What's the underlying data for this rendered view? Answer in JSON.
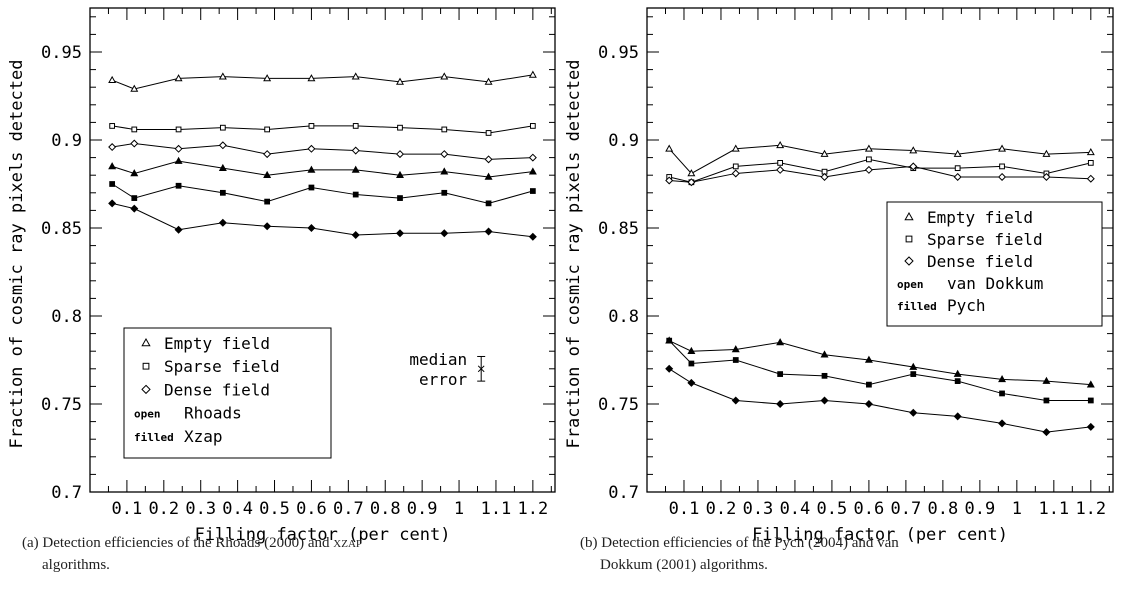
{
  "chart_data": [
    {
      "type": "line",
      "panel_id": "a",
      "xlabel": "Filling factor (per cent)",
      "ylabel": "Fraction of cosmic ray pixels detected",
      "xlim": [
        0,
        1.26
      ],
      "ylim": [
        0.7,
        0.975
      ],
      "xticks": [
        "0.1",
        "0.2",
        "0.3",
        "0.4",
        "0.5",
        "0.6",
        "0.7",
        "0.8",
        "0.9",
        "1",
        "1.1",
        "1.2"
      ],
      "yticks": [
        "0.7",
        "0.75",
        "0.8",
        "0.85",
        "0.9",
        "0.95"
      ],
      "x": [
        0.06,
        0.12,
        0.24,
        0.36,
        0.48,
        0.6,
        0.72,
        0.84,
        0.96,
        1.08,
        1.2
      ],
      "series": [
        {
          "name": "Empty field",
          "marker": "triangle",
          "filled": false,
          "values": [
            0.934,
            0.929,
            0.935,
            0.936,
            0.935,
            0.935,
            0.936,
            0.933,
            0.936,
            0.933,
            0.937
          ]
        },
        {
          "name": "Sparse field",
          "marker": "square",
          "filled": false,
          "values": [
            0.908,
            0.906,
            0.906,
            0.907,
            0.906,
            0.908,
            0.908,
            0.907,
            0.906,
            0.904,
            0.908
          ]
        },
        {
          "name": "Dense field",
          "marker": "diamond",
          "filled": false,
          "values": [
            0.896,
            0.898,
            0.895,
            0.897,
            0.892,
            0.895,
            0.894,
            0.892,
            0.892,
            0.889,
            0.89
          ]
        },
        {
          "name": "Empty field",
          "marker": "triangle",
          "filled": true,
          "values": [
            0.885,
            0.881,
            0.888,
            0.884,
            0.88,
            0.883,
            0.883,
            0.88,
            0.882,
            0.879,
            0.882
          ]
        },
        {
          "name": "Sparse field",
          "marker": "square",
          "filled": true,
          "values": [
            0.875,
            0.867,
            0.874,
            0.87,
            0.865,
            0.873,
            0.869,
            0.867,
            0.87,
            0.864,
            0.871
          ]
        },
        {
          "name": "Dense field",
          "marker": "diamond",
          "filled": true,
          "values": [
            0.864,
            0.861,
            0.849,
            0.853,
            0.851,
            0.85,
            0.846,
            0.847,
            0.847,
            0.848,
            0.845
          ]
        }
      ],
      "legend": {
        "items": [
          {
            "symbol": "triangle",
            "label": "Empty field"
          },
          {
            "symbol": "square",
            "label": "Sparse field"
          },
          {
            "symbol": "diamond",
            "label": "Dense field"
          },
          {
            "key": "open",
            "label": "Rhoads"
          },
          {
            "key": "filled",
            "label": "Xzap"
          }
        ],
        "placement": "bottom-left"
      },
      "annotation": {
        "line1": "median",
        "line2": "error",
        "x": 1.06,
        "y": 0.77,
        "error": 0.007
      },
      "caption": {
        "line1_pre": "(a) Detection efficiencies of the Rhoads (2000) and ",
        "line1_sc": "XZAP",
        "line2": "algorithms."
      }
    },
    {
      "type": "line",
      "panel_id": "b",
      "xlabel": "Filling factor (per cent)",
      "ylabel": "Fraction of cosmic ray pixels detected",
      "xlim": [
        0,
        1.26
      ],
      "ylim": [
        0.7,
        0.975
      ],
      "xticks": [
        "0.1",
        "0.2",
        "0.3",
        "0.4",
        "0.5",
        "0.6",
        "0.7",
        "0.8",
        "0.9",
        "1",
        "1.1",
        "1.2"
      ],
      "yticks": [
        "0.7",
        "0.75",
        "0.8",
        "0.85",
        "0.9",
        "0.95"
      ],
      "x": [
        0.06,
        0.12,
        0.24,
        0.36,
        0.48,
        0.6,
        0.72,
        0.84,
        0.96,
        1.08,
        1.2
      ],
      "series": [
        {
          "name": "Empty field",
          "marker": "triangle",
          "filled": false,
          "values": [
            0.895,
            0.881,
            0.895,
            0.897,
            0.892,
            0.895,
            0.894,
            0.892,
            0.895,
            0.892,
            0.893
          ]
        },
        {
          "name": "Sparse field",
          "marker": "square",
          "filled": false,
          "values": [
            0.879,
            0.876,
            0.885,
            0.887,
            0.882,
            0.889,
            0.884,
            0.884,
            0.885,
            0.881,
            0.887
          ]
        },
        {
          "name": "Dense field",
          "marker": "diamond",
          "filled": false,
          "values": [
            0.877,
            0.876,
            0.881,
            0.883,
            0.879,
            0.883,
            0.885,
            0.879,
            0.879,
            0.879,
            0.878
          ]
        },
        {
          "name": "Empty field",
          "marker": "triangle",
          "filled": true,
          "values": [
            0.786,
            0.78,
            0.781,
            0.785,
            0.778,
            0.775,
            0.771,
            0.767,
            0.764,
            0.763,
            0.761
          ]
        },
        {
          "name": "Sparse field",
          "marker": "square",
          "filled": true,
          "values": [
            0.786,
            0.773,
            0.775,
            0.767,
            0.766,
            0.761,
            0.767,
            0.763,
            0.756,
            0.752,
            0.752
          ]
        },
        {
          "name": "Dense field",
          "marker": "diamond",
          "filled": true,
          "values": [
            0.77,
            0.762,
            0.752,
            0.75,
            0.752,
            0.75,
            0.745,
            0.743,
            0.739,
            0.734,
            0.737
          ]
        }
      ],
      "legend": {
        "items": [
          {
            "symbol": "triangle",
            "label": "Empty field"
          },
          {
            "symbol": "square",
            "label": "Sparse field"
          },
          {
            "symbol": "diamond",
            "label": "Dense field"
          },
          {
            "key": "open",
            "label": "van Dokkum"
          },
          {
            "key": "filled",
            "label": "Pych"
          }
        ],
        "placement": "center-right"
      },
      "caption": {
        "line1": "(b) Detection efficiencies of the Pych (2004) and van",
        "line2": "Dokkum (2001) algorithms."
      }
    }
  ]
}
